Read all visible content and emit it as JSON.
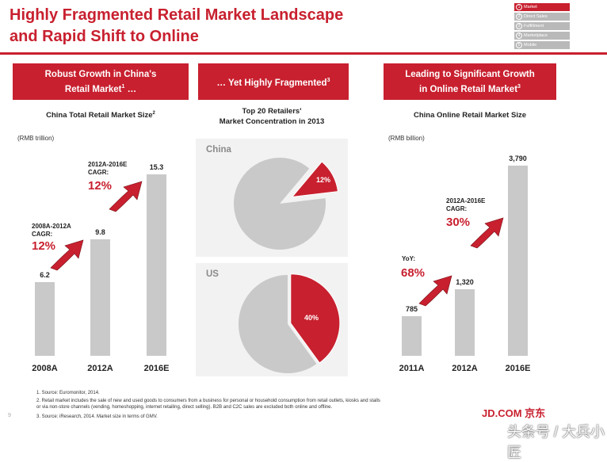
{
  "header": {
    "title_line1": "Highly Fragmented Retail Market Landscape",
    "title_line2": "and Rapid Shift to Online"
  },
  "nav": {
    "items": [
      {
        "num": "1",
        "label": "Market"
      },
      {
        "num": "2",
        "label": "Direct Sales"
      },
      {
        "num": "3",
        "label": "Fulfillment"
      },
      {
        "num": "4",
        "label": "Marketplace"
      },
      {
        "num": "5",
        "label": "Mobile"
      }
    ]
  },
  "colors": {
    "accent": "#c8202f",
    "bar": "#c9c9c9",
    "pie": "#c9c9c9",
    "panel": "#f2f2f2"
  },
  "banners": {
    "left_line1": "Robust Growth in China's",
    "left_line2": "Retail Market",
    "left_sup": "1",
    "left_tail": " …",
    "mid_text": "… Yet Highly Fragmented",
    "mid_sup": "3",
    "right_line1": "Leading to Significant Growth",
    "right_line2": "in Online Retail Market",
    "right_sup": "3"
  },
  "left_chart": {
    "title": "China Total Retail Market Size",
    "title_sup": "2",
    "unit": "(RMB trillion)",
    "cagr1_label_line1": "2008A-2012A",
    "cagr1_label_line2": "CAGR:",
    "cagr1_value": "12%",
    "cagr2_label_line1": "2012A-2016E",
    "cagr2_label_line2": "CAGR:",
    "cagr2_value": "12%"
  },
  "mid_chart": {
    "title_line1": "Top 20 Retailers'",
    "title_line2": "Market Concentration in 2013",
    "china_label": "China",
    "china_share": 12,
    "china_share_label": "12%",
    "us_label": "US",
    "us_share": 40,
    "us_share_label": "40%"
  },
  "right_chart": {
    "title": "China Online Retail Market Size",
    "unit": "(RMB billion)",
    "yoy_label": "YoY:",
    "yoy_value": "68%",
    "cagr_label_line1": "2012A-2016E",
    "cagr_label_line2": "CAGR:",
    "cagr_value": "30%"
  },
  "chart_data": [
    {
      "type": "bar",
      "title": "China Total Retail Market Size",
      "ylabel": "(RMB trillion)",
      "categories": [
        "2008A",
        "2012A",
        "2016E"
      ],
      "values": [
        6.2,
        9.8,
        15.3
      ],
      "value_labels": [
        "6.2",
        "9.8",
        "15.3"
      ],
      "ylim": [
        0,
        16
      ]
    },
    {
      "type": "pie",
      "title": "Top 20 Retailers' Market Concentration in 2013",
      "series": [
        {
          "name": "China",
          "values": [
            12,
            88
          ]
        },
        {
          "name": "US",
          "values": [
            40,
            60
          ]
        }
      ]
    },
    {
      "type": "bar",
      "title": "China Online Retail Market Size",
      "ylabel": "(RMB billion)",
      "categories": [
        "2011A",
        "2012A",
        "2016E"
      ],
      "values": [
        785,
        1320,
        3790
      ],
      "value_labels": [
        "785",
        "1,320",
        "3,790"
      ],
      "ylim": [
        0,
        3950
      ]
    }
  ],
  "footnotes": {
    "f1": "1. Source: Euromonitor, 2014.",
    "f2a": "2. Retail market includes the sale of new and used goods to consumers from a business for personal or household consumption from retail outlets, kiosks and stalls",
    "f2b": "or via non-store channels (vending, homeshopping, internet retailing, direct selling). B2B and C2C sales are excluded both online and offline.",
    "f3": "3. Source: iResearch, 2014. Market size in terms of GMV."
  },
  "footer": {
    "page_number": "9",
    "logo": "JD.COM 京东",
    "watermark": "头条号 / 大兵小匠"
  }
}
